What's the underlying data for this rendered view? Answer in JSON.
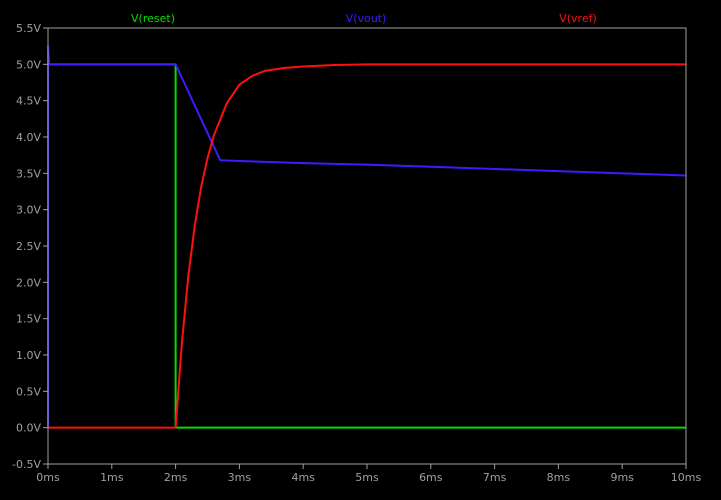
{
  "chart_data": {
    "type": "line",
    "title": "",
    "xlabel": "",
    "ylabel": "",
    "xlim": [
      0,
      10
    ],
    "ylim": [
      -0.5,
      5.5
    ],
    "grid": false,
    "background_color": "#000000",
    "axis_color": "#a0a0a0",
    "x_tick_values": [
      0,
      1,
      2,
      3,
      4,
      5,
      6,
      7,
      8,
      9,
      10
    ],
    "x_tick_labels": [
      "0ms",
      "1ms",
      "2ms",
      "3ms",
      "4ms",
      "5ms",
      "6ms",
      "7ms",
      "8ms",
      "9ms",
      "10ms"
    ],
    "y_tick_values": [
      -0.5,
      0.0,
      0.5,
      1.0,
      1.5,
      2.0,
      2.5,
      3.0,
      3.5,
      4.0,
      4.5,
      5.0,
      5.5
    ],
    "y_tick_labels": [
      "-0.5V",
      "0.0V",
      "0.5V",
      "1.0V",
      "1.5V",
      "2.0V",
      "2.5V",
      "3.0V",
      "3.5V",
      "4.0V",
      "4.5V",
      "5.0V",
      "5.5V"
    ],
    "series": [
      {
        "name": "V(reset)",
        "color": "#00e000",
        "legend_position": "left",
        "x": [
          0,
          0,
          2,
          2,
          10
        ],
        "y": [
          0.0,
          5.0,
          5.0,
          0.0,
          0.0
        ]
      },
      {
        "name": "V(vout)",
        "color": "#3c1cff",
        "legend_position": "center",
        "x": [
          0,
          0,
          0.02,
          2,
          2.7,
          3,
          4,
          5,
          6,
          7,
          8,
          9,
          10
        ],
        "y": [
          0.0,
          5.25,
          5.0,
          5.0,
          3.68,
          3.67,
          3.64,
          3.62,
          3.59,
          3.56,
          3.53,
          3.5,
          3.47
        ]
      },
      {
        "name": "V(vref)",
        "color": "#ff1010",
        "legend_position": "right",
        "x": [
          0,
          2.0,
          2.1,
          2.2,
          2.3,
          2.4,
          2.5,
          2.6,
          2.8,
          3.0,
          3.2,
          3.4,
          3.7,
          4.0,
          4.5,
          5.0,
          5.5,
          6,
          7,
          8,
          9,
          10
        ],
        "y": [
          0.0,
          0.0,
          1.18,
          2.09,
          2.78,
          3.31,
          3.71,
          4.02,
          4.46,
          4.72,
          4.84,
          4.91,
          4.95,
          4.97,
          4.99,
          5.0,
          5.0,
          5.0,
          5.0,
          5.0,
          5.0,
          5.0
        ]
      }
    ]
  }
}
